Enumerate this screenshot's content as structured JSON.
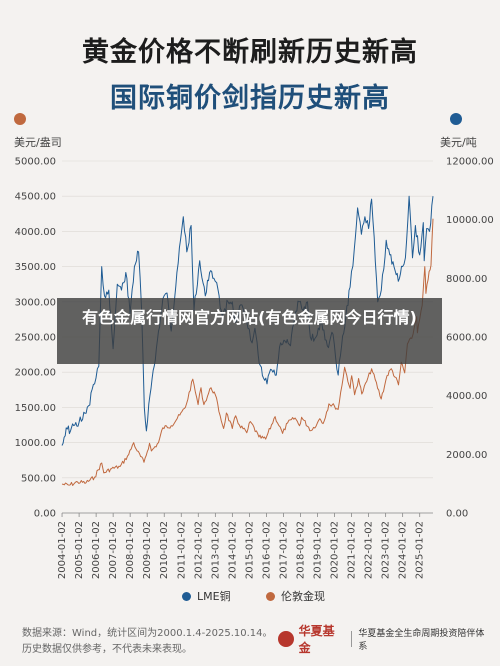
{
  "title_line1": "黄金价格不断刷新历史新高",
  "title_line2": "国际铜价剑指历史新高",
  "colors": {
    "gold": "#c0693f",
    "copper": "#1f5c94",
    "title2": "#1f4f7a",
    "overlay": "rgba(60,60,60,0.80)"
  },
  "overlay_text": "有色金属行情网官方网站(有色金属网今日行情)",
  "chart_data": {
    "type": "line",
    "left_axis": {
      "unit": "美元/盎司",
      "ylim": [
        0,
        5000
      ],
      "ticks": [
        "5000.00",
        "4500.00",
        "4000.00",
        "3500.00",
        "3000.00",
        "2500.00",
        "2000.00",
        "1500.00",
        "1000.00",
        "500.00",
        "0.00"
      ]
    },
    "right_axis": {
      "unit": "美元/吨",
      "ylim": [
        0,
        12000
      ],
      "ticks": [
        "12000.00",
        "10000.00",
        "8000.00",
        "6000.00",
        "4000.00",
        "2000.00",
        "0.00"
      ]
    },
    "x_ticks": [
      "2004-01-02",
      "2005-01-02",
      "2006-01-02",
      "2007-01-02",
      "2008-01-02",
      "2009-01-02",
      "2010-01-02",
      "2011-01-02",
      "2012-01-02",
      "2013-01-02",
      "2014-01-02",
      "2015-01-02",
      "2016-01-02",
      "2017-01-02",
      "2018-01-02",
      "2019-01-02",
      "2020-01-02",
      "2021-01-02",
      "2022-01-02",
      "2023-01-02",
      "2024-01-02",
      "2025-01-02"
    ],
    "x_range": [
      "2004-01-01",
      "2025-10-14"
    ],
    "series": [
      {
        "name": "LME铜",
        "axis": "right",
        "color": "#1f5c94",
        "points": [
          [
            "2004-01-01",
            2300
          ],
          [
            "2004-04-01",
            2900
          ],
          [
            "2004-07-01",
            2800
          ],
          [
            "2004-10-01",
            3000
          ],
          [
            "2005-01-01",
            3100
          ],
          [
            "2005-06-01",
            3400
          ],
          [
            "2005-12-01",
            4400
          ],
          [
            "2006-03-01",
            5000
          ],
          [
            "2006-05-01",
            8400
          ],
          [
            "2006-07-01",
            7400
          ],
          [
            "2006-10-01",
            7600
          ],
          [
            "2007-01-01",
            5600
          ],
          [
            "2007-04-01",
            7800
          ],
          [
            "2007-07-01",
            7600
          ],
          [
            "2007-10-01",
            8200
          ],
          [
            "2008-01-01",
            6800
          ],
          [
            "2008-04-01",
            8400
          ],
          [
            "2008-07-01",
            8900
          ],
          [
            "2008-09-01",
            7000
          ],
          [
            "2008-11-01",
            3600
          ],
          [
            "2008-12-15",
            2800
          ],
          [
            "2009-03-01",
            4000
          ],
          [
            "2009-06-01",
            5000
          ],
          [
            "2009-09-01",
            6200
          ],
          [
            "2009-12-01",
            7300
          ],
          [
            "2010-03-01",
            7500
          ],
          [
            "2010-06-01",
            6200
          ],
          [
            "2010-10-01",
            8200
          ],
          [
            "2011-01-15",
            9700
          ],
          [
            "2011-02-15",
            10100
          ],
          [
            "2011-05-01",
            8900
          ],
          [
            "2011-08-01",
            9800
          ],
          [
            "2011-10-01",
            6900
          ],
          [
            "2012-02-01",
            8600
          ],
          [
            "2012-06-01",
            7400
          ],
          [
            "2012-09-01",
            8200
          ],
          [
            "2012-12-01",
            8000
          ],
          [
            "2013-03-01",
            7600
          ],
          [
            "2013-06-01",
            6700
          ],
          [
            "2013-10-01",
            7200
          ],
          [
            "2014-01-01",
            7200
          ],
          [
            "2014-03-01",
            6500
          ],
          [
            "2014-07-01",
            7100
          ],
          [
            "2014-12-01",
            6300
          ],
          [
            "2015-03-01",
            5800
          ],
          [
            "2015-05-01",
            6300
          ],
          [
            "2015-08-01",
            5100
          ],
          [
            "2015-11-01",
            4600
          ],
          [
            "2016-01-15",
            4400
          ],
          [
            "2016-04-01",
            4900
          ],
          [
            "2016-08-01",
            4700
          ],
          [
            "2016-11-01",
            5800
          ],
          [
            "2017-03-01",
            5800
          ],
          [
            "2017-06-01",
            5700
          ],
          [
            "2017-09-01",
            6700
          ],
          [
            "2017-12-01",
            7200
          ],
          [
            "2018-03-01",
            6900
          ],
          [
            "2018-06-01",
            7200
          ],
          [
            "2018-08-01",
            6000
          ],
          [
            "2018-12-01",
            6000
          ],
          [
            "2019-04-01",
            6500
          ],
          [
            "2019-08-01",
            5700
          ],
          [
            "2019-12-01",
            6100
          ],
          [
            "2020-03-20",
            4700
          ],
          [
            "2020-06-01",
            5700
          ],
          [
            "2020-09-01",
            6700
          ],
          [
            "2020-12-01",
            7700
          ],
          [
            "2021-03-01",
            9000
          ],
          [
            "2021-05-10",
            10400
          ],
          [
            "2021-08-01",
            9500
          ],
          [
            "2021-10-15",
            10100
          ],
          [
            "2022-01-01",
            9700
          ],
          [
            "2022-03-07",
            10700
          ],
          [
            "2022-05-01",
            9400
          ],
          [
            "2022-07-15",
            7200
          ],
          [
            "2022-10-01",
            7600
          ],
          [
            "2023-01-15",
            9300
          ],
          [
            "2023-04-01",
            8800
          ],
          [
            "2023-07-01",
            8400
          ],
          [
            "2023-10-01",
            7900
          ],
          [
            "2024-01-01",
            8400
          ],
          [
            "2024-03-01",
            8700
          ],
          [
            "2024-05-20",
            10800
          ],
          [
            "2024-08-01",
            8700
          ],
          [
            "2024-10-01",
            9800
          ],
          [
            "2025-01-01",
            8800
          ],
          [
            "2025-03-20",
            9900
          ],
          [
            "2025-04-08",
            8600
          ],
          [
            "2025-06-01",
            9700
          ],
          [
            "2025-08-01",
            9600
          ],
          [
            "2025-10-14",
            10800
          ]
        ]
      },
      {
        "name": "伦敦金现",
        "axis": "left",
        "color": "#c0693f",
        "points": [
          [
            "2004-01-01",
            410
          ],
          [
            "2004-06-01",
            395
          ],
          [
            "2004-12-01",
            440
          ],
          [
            "2005-06-01",
            430
          ],
          [
            "2005-12-01",
            510
          ],
          [
            "2006-05-01",
            710
          ],
          [
            "2006-06-15",
            570
          ],
          [
            "2006-12-01",
            630
          ],
          [
            "2007-06-01",
            660
          ],
          [
            "2007-12-01",
            830
          ],
          [
            "2008-03-17",
            1000
          ],
          [
            "2008-06-01",
            880
          ],
          [
            "2008-10-24",
            720
          ],
          [
            "2009-02-20",
            990
          ],
          [
            "2009-04-01",
            880
          ],
          [
            "2009-09-01",
            1000
          ],
          [
            "2009-12-02",
            1210
          ],
          [
            "2010-06-01",
            1240
          ],
          [
            "2010-12-01",
            1390
          ],
          [
            "2011-04-01",
            1500
          ],
          [
            "2011-09-06",
            1900
          ],
          [
            "2011-12-29",
            1540
          ],
          [
            "2012-02-29",
            1780
          ],
          [
            "2012-05-01",
            1540
          ],
          [
            "2012-10-01",
            1780
          ],
          [
            "2013-01-01",
            1680
          ],
          [
            "2013-04-15",
            1380
          ],
          [
            "2013-06-28",
            1200
          ],
          [
            "2013-08-28",
            1420
          ],
          [
            "2013-12-31",
            1200
          ],
          [
            "2014-03-14",
            1380
          ],
          [
            "2014-06-01",
            1250
          ],
          [
            "2014-11-07",
            1140
          ],
          [
            "2015-01-22",
            1300
          ],
          [
            "2015-07-24",
            1080
          ],
          [
            "2015-12-17",
            1050
          ],
          [
            "2016-07-06",
            1370
          ],
          [
            "2016-12-15",
            1130
          ],
          [
            "2017-04-01",
            1280
          ],
          [
            "2017-09-08",
            1350
          ],
          [
            "2017-12-12",
            1240
          ],
          [
            "2018-01-25",
            1360
          ],
          [
            "2018-08-16",
            1170
          ],
          [
            "2018-12-31",
            1280
          ],
          [
            "2019-02-20",
            1340
          ],
          [
            "2019-05-01",
            1270
          ],
          [
            "2019-09-04",
            1550
          ],
          [
            "2019-12-31",
            1520
          ],
          [
            "2020-03-19",
            1470
          ],
          [
            "2020-08-06",
            2070
          ],
          [
            "2020-11-30",
            1770
          ],
          [
            "2021-01-05",
            1950
          ],
          [
            "2021-03-08",
            1680
          ],
          [
            "2021-06-01",
            1910
          ],
          [
            "2021-08-09",
            1690
          ],
          [
            "2022-03-08",
            2050
          ],
          [
            "2022-09-28",
            1620
          ],
          [
            "2023-02-01",
            1950
          ],
          [
            "2023-05-04",
            2050
          ],
          [
            "2023-10-05",
            1820
          ],
          [
            "2023-12-04",
            2140
          ],
          [
            "2024-02-14",
            1990
          ],
          [
            "2024-04-12",
            2400
          ],
          [
            "2024-07-17",
            2480
          ],
          [
            "2024-10-30",
            2790
          ],
          [
            "2024-11-14",
            2560
          ],
          [
            "2025-02-24",
            2950
          ],
          [
            "2025-04-22",
            3500
          ],
          [
            "2025-05-15",
            3120
          ],
          [
            "2025-07-23",
            3430
          ],
          [
            "2025-09-01",
            3520
          ],
          [
            "2025-10-14",
            4180
          ]
        ]
      }
    ],
    "legend": {
      "placement": "bottom",
      "items": [
        "LME铜",
        "伦敦金现"
      ]
    }
  },
  "legend_labels": {
    "copper": "LME铜",
    "gold": "伦敦金现"
  },
  "axis_units": {
    "left": "美元/盎司",
    "right": "美元/吨"
  },
  "footer": {
    "line1": "数据来源：Wind，统计区间为2000.1.4-2025.10.14。",
    "line2": "历史数据仅供参考，不代表未来表现。"
  },
  "brand": {
    "name": "华夏基金",
    "slogan": "华夏基金全生命周期投资陪伴体系"
  }
}
